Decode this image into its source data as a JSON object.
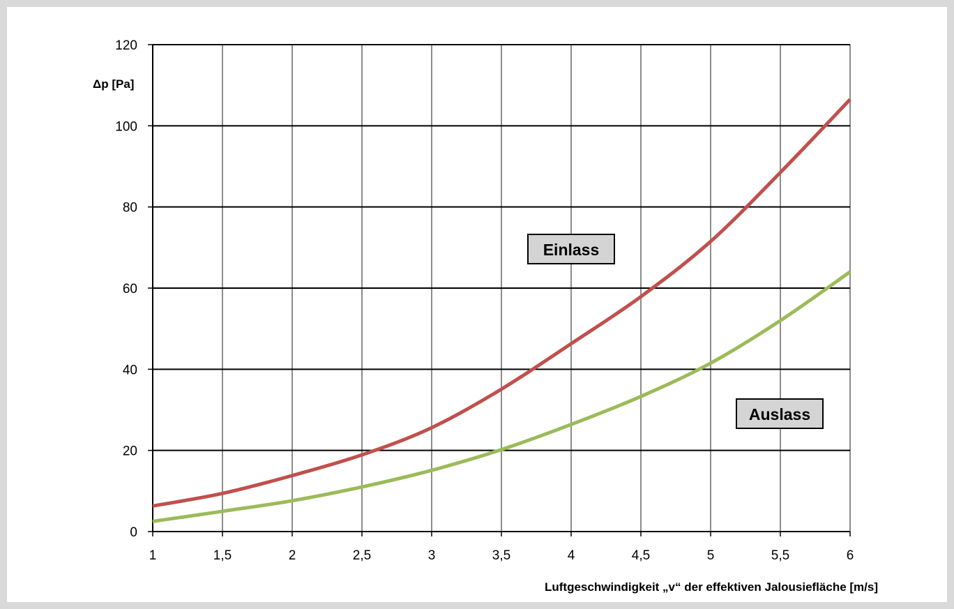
{
  "chart_data": {
    "type": "line",
    "title": "",
    "xlabel": "Luftgeschwindigkeit „v“ der effektiven Jalousiefläche [m/s]",
    "ylabel": "Δp [Pa]",
    "xlim": [
      1,
      6
    ],
    "ylim": [
      0,
      120
    ],
    "x_ticks": [
      "1",
      "1,5",
      "2",
      "2,5",
      "3",
      "3,5",
      "4",
      "4,5",
      "5",
      "5,5",
      "6"
    ],
    "y_ticks": [
      "0",
      "20",
      "40",
      "60",
      "80",
      "100",
      "120"
    ],
    "grid": true,
    "series": [
      {
        "name": "Einlass",
        "color": "#c0504d",
        "x": [
          1,
          1.5,
          2,
          2.5,
          3,
          3.5,
          4,
          4.5,
          5,
          5.5,
          6
        ],
        "y": [
          6.3,
          9.4,
          13.8,
          18.9,
          25.6,
          35.1,
          46.3,
          57.9,
          71.5,
          88.5,
          106.5
        ]
      },
      {
        "name": "Auslass",
        "color": "#9bbb59",
        "x": [
          1,
          1.5,
          2,
          2.5,
          3,
          3.5,
          4,
          4.5,
          5,
          5.5,
          6
        ],
        "y": [
          2.5,
          5.0,
          7.6,
          11.0,
          15.1,
          20.2,
          26.4,
          33.3,
          41.5,
          52.0,
          64.0
        ]
      }
    ]
  }
}
